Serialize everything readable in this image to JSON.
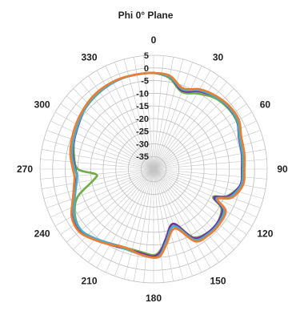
{
  "chart_data": {
    "type": "line",
    "subtype": "polar",
    "title": "Phi 0° Plane",
    "angle_ticks": [
      "0",
      "30",
      "60",
      "90",
      "120",
      "150",
      "180",
      "210",
      "240",
      "270",
      "300",
      "330"
    ],
    "radial_ticks": [
      "5",
      "0",
      "-5",
      "-10",
      "-15",
      "-20",
      "-25",
      "-30",
      "-35"
    ],
    "rlim": [
      -40,
      5
    ],
    "angular_grid_step_deg": 5,
    "grid": true,
    "legend": "none",
    "theta": [
      0,
      10,
      20,
      30,
      40,
      50,
      60,
      70,
      80,
      90,
      100,
      110,
      115,
      120,
      130,
      140,
      150,
      160,
      170,
      175,
      180,
      190,
      200,
      210,
      220,
      230,
      240,
      250,
      260,
      265,
      270,
      280,
      290,
      300,
      310,
      320,
      330,
      340,
      350
    ],
    "series": [
      {
        "color": "#2e75b6",
        "values": [
          -2,
          -3,
          -7,
          -4,
          -2.5,
          -1.5,
          -1.8,
          -4,
          -4.5,
          -5,
          -5,
          -8,
          -13,
          -8,
          -7,
          -7,
          -8,
          -16,
          -11,
          -6,
          -5,
          -6,
          -7,
          -6,
          -4,
          -2,
          -3,
          -6.5,
          -9,
          -9.5,
          -9,
          -7.5,
          -6.5,
          -5.5,
          -4,
          -3,
          -2.5,
          -2,
          -2
        ]
      },
      {
        "color": "#70ad47",
        "values": [
          -2,
          -3.5,
          -7.5,
          -5.5,
          -3,
          -2,
          -2,
          -3.5,
          -4.5,
          -5,
          -5,
          -9,
          -14,
          -9,
          -7,
          -7,
          -9,
          -17,
          -12,
          -8,
          -6,
          -7,
          -7,
          -6,
          -4,
          -2.5,
          -4,
          -8,
          -16,
          -17,
          -10,
          -8,
          -6.5,
          -5.5,
          -4,
          -3.2,
          -2.5,
          -2,
          -2
        ]
      },
      {
        "color": "#7030a0",
        "values": [
          -2,
          -3,
          -7,
          -4.5,
          -2.5,
          -1.6,
          -1.8,
          -4,
          -4.5,
          -5,
          -5,
          -8.5,
          -13.5,
          -8.5,
          -7,
          -7,
          -8.5,
          -17,
          -12,
          -7.5,
          -5.5,
          -6.5,
          -6.5,
          -5.5,
          -4,
          -2,
          -3,
          -6,
          -8.5,
          -9.5,
          -9,
          -7.5,
          -6.5,
          -5.5,
          -4,
          -3,
          -2.5,
          -2,
          -2
        ]
      },
      {
        "color": "#4bacc6",
        "values": [
          -2,
          -3,
          -6.5,
          -4,
          -2.5,
          -1.5,
          -1.7,
          -3.8,
          -4.3,
          -4.7,
          -4.7,
          -7.8,
          -12.5,
          -7.8,
          -6.5,
          -6.5,
          -7.8,
          -16,
          -11,
          -6.5,
          -5,
          -6,
          -6.5,
          -6,
          -4.2,
          -2.5,
          -3.5,
          -6.8,
          -9,
          -9.5,
          -8.8,
          -7.2,
          -6.3,
          -5.3,
          -4,
          -3,
          -2.5,
          -2,
          -2
        ]
      },
      {
        "color": "#ed7d31",
        "values": [
          -2,
          -2.5,
          -6,
          -3.5,
          -2,
          -1,
          -1,
          -3,
          -3.5,
          -4,
          -4,
          -7,
          -12,
          -7,
          -6,
          -6,
          -7,
          -15,
          -10,
          -6,
          -5,
          -6,
          -7,
          -5.5,
          -3.5,
          -1.5,
          -2.5,
          -6,
          -8,
          -8.5,
          -8,
          -6.5,
          -5.5,
          -4.5,
          -3.5,
          -2.5,
          -2,
          -1.8,
          -2
        ]
      }
    ]
  }
}
